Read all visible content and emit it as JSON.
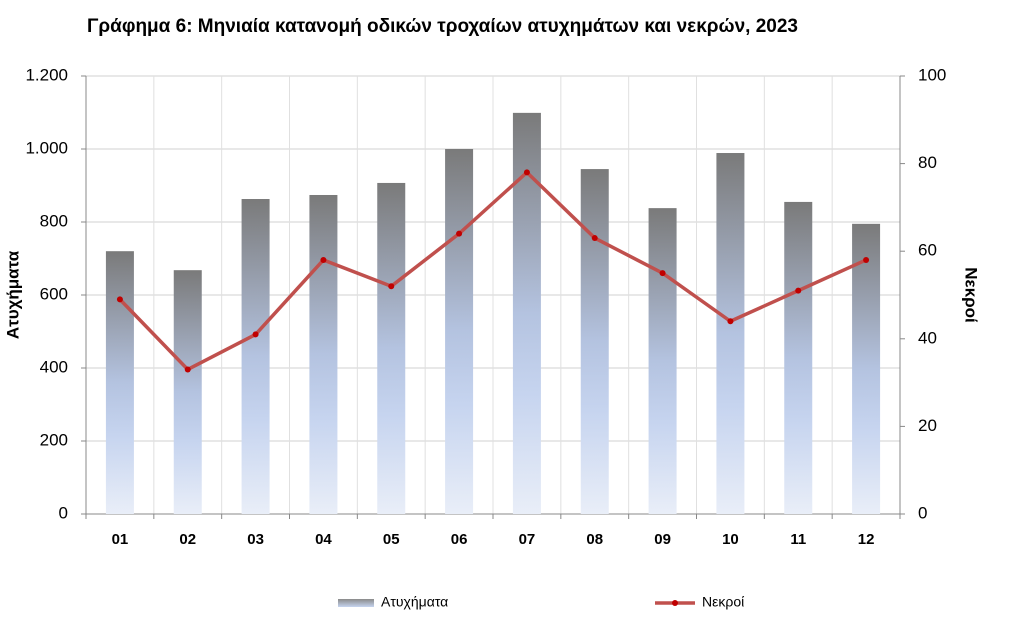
{
  "chart_data": {
    "type": "bar_line",
    "title": "Γράφημα 6: Μηνιαία κατανομή οδικών τροχαίων ατυχημάτων και νεκρών, 2023",
    "y_label": "Ατυχήματα",
    "y2_label": "Νεκροί",
    "categories": [
      "01",
      "02",
      "03",
      "04",
      "05",
      "06",
      "07",
      "08",
      "09",
      "10",
      "11",
      "12"
    ],
    "series": [
      {
        "name": "Ατυχήματα",
        "type": "bar",
        "color": "#7f7f7f",
        "values": [
          720,
          668,
          863,
          874,
          907,
          1000,
          1099,
          945,
          838,
          989,
          855,
          795
        ]
      },
      {
        "name": "Νεκροί",
        "type": "line",
        "axis": "y2",
        "color": "#c0504d",
        "values": [
          49,
          33,
          41,
          58,
          52,
          64,
          78,
          63,
          55,
          44,
          51,
          58
        ]
      }
    ],
    "ylim": [
      0,
      1200
    ],
    "yticks": [
      0,
      200,
      400,
      600,
      800,
      {
        "value": 1000,
        "label": "1.000"
      },
      {
        "value": 1200,
        "label": "1.200"
      }
    ],
    "y2lim": [
      0,
      100
    ],
    "y2ticks": [
      0,
      20,
      40,
      60,
      80,
      100
    ],
    "grid": true
  }
}
